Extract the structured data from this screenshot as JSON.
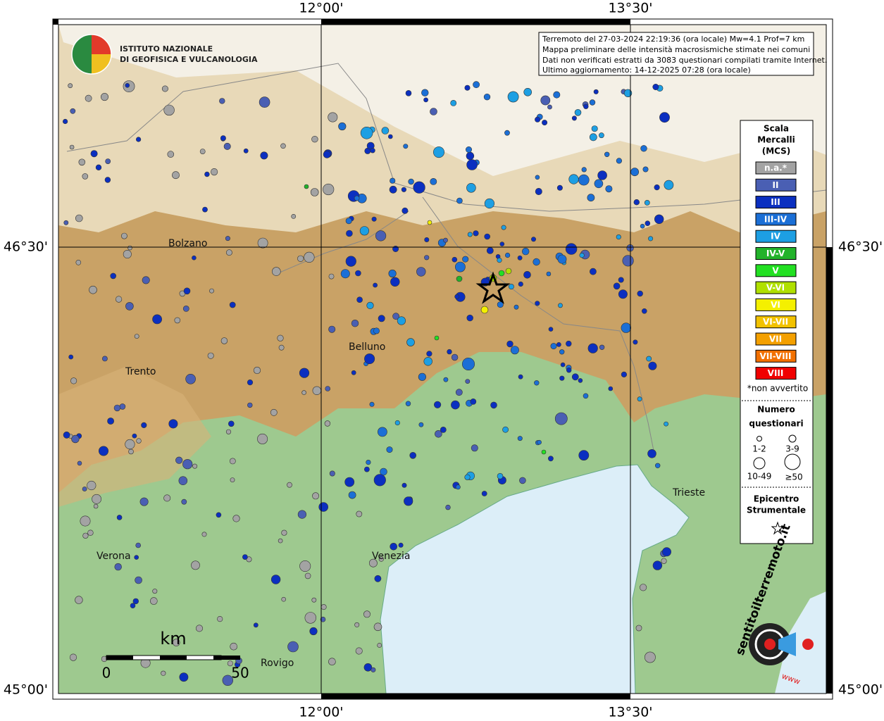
{
  "header": {
    "logo_line1": "ISTITUTO NAZIONALE",
    "logo_line2": "DI GEOFISICA E VULCANOLOGIA"
  },
  "info": {
    "lines": [
      "Terremoto del 27-03-2024 22:19:36 (ora locale) Mw=4.1 Prof=7 km",
      "Mappa preliminare delle intensità macrosismiche stimate nei comuni",
      "Dati non verificati estratti da 3083 questionari compilati tramite Internet.",
      "Ultimo aggiornamento: 14-12-2025 07:28 (ora locale)"
    ]
  },
  "axes": {
    "top": [
      "12°00'",
      "13°30'"
    ],
    "bottom": [
      "12°00'",
      "13°30'"
    ],
    "left": [
      "46°30'",
      "45°00'"
    ],
    "right": [
      "46°30'",
      "45°00'"
    ]
  },
  "legend": {
    "title": [
      "Scala",
      "Mercalli",
      "(MCS)"
    ],
    "items": [
      {
        "label": "n.a.*",
        "color": "#a3a3a3"
      },
      {
        "label": "II",
        "color": "#4a5fb3"
      },
      {
        "label": "III",
        "color": "#0b2fc0"
      },
      {
        "label": "III-IV",
        "color": "#1b6fd6"
      },
      {
        "label": "IV",
        "color": "#1d9fe3"
      },
      {
        "label": "IV-V",
        "color": "#22b22a"
      },
      {
        "label": "V",
        "color": "#22e022"
      },
      {
        "label": "V-VI",
        "color": "#b0e000"
      },
      {
        "label": "VI",
        "color": "#f4f000"
      },
      {
        "label": "VI-VII",
        "color": "#f2c200"
      },
      {
        "label": "VII",
        "color": "#f4a000"
      },
      {
        "label": "VII-VIII",
        "color": "#f27000"
      },
      {
        "label": "VIII",
        "color": "#f00000"
      }
    ],
    "note": "*non avvertito",
    "count_title": [
      "Numero",
      "questionari"
    ],
    "count_sizes": [
      "1-2",
      "3-9",
      "10-49",
      "≥50"
    ],
    "epicenter_title": [
      "Epicentro",
      "Strumentale"
    ]
  },
  "cities": [
    "Bolzano",
    "Trento",
    "Belluno",
    "Verona",
    "Venezia",
    "Trieste",
    "Rovigo"
  ],
  "scalebar": {
    "unit": "km",
    "labels": [
      "0",
      "50"
    ]
  },
  "footer_logo": {
    "text": "sentitoilterremoto.it",
    "www": "www"
  }
}
